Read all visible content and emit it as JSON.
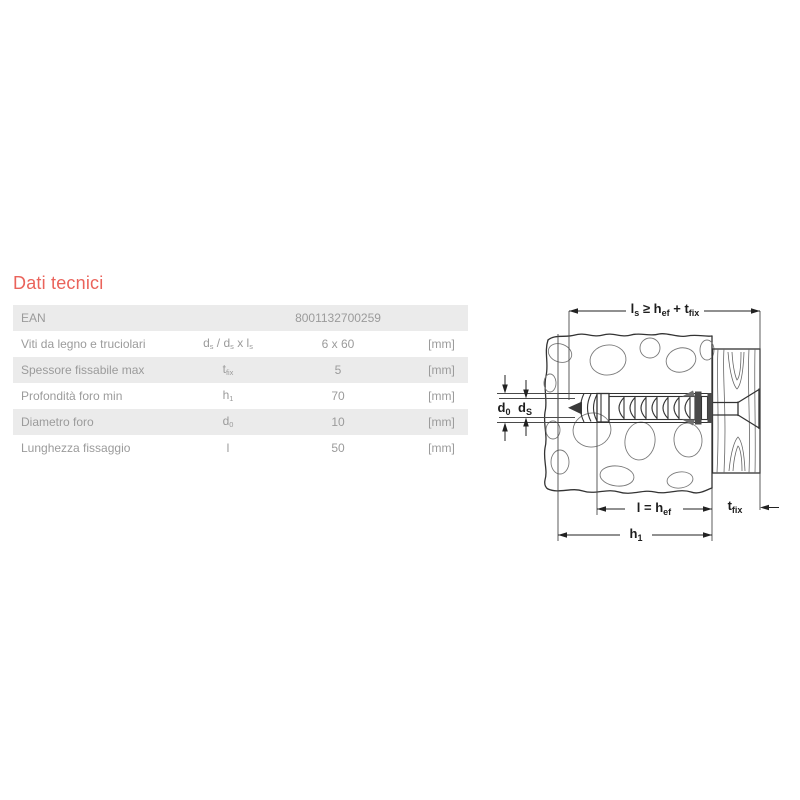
{
  "page": {
    "background": "#ffffff"
  },
  "section": {
    "title": "Dati tecnici"
  },
  "colors": {
    "accent": "#ea635b",
    "row_shade": "#ebebeb",
    "table_text": "#9b9b9b",
    "diagram_line": "#333333"
  },
  "table": {
    "rows": [
      {
        "label": "EAN",
        "symbol": "",
        "value": "8001132700259",
        "unit": ""
      },
      {
        "label": "Viti da legno e truciolari",
        "symbol": "d_s / d_s x l_s",
        "value": "6 x 60",
        "unit": "[mm]"
      },
      {
        "label": "Spessore fissabile max",
        "symbol": "t_fix",
        "value": "5",
        "unit": "[mm]"
      },
      {
        "label": "Profondità foro min",
        "symbol": "h_1",
        "value": "70",
        "unit": "[mm]"
      },
      {
        "label": "Diametro foro",
        "symbol": "d_0",
        "value": "10",
        "unit": "[mm]"
      },
      {
        "label": "Lunghezza fissaggio",
        "symbol": "l",
        "value": "50",
        "unit": "[mm]"
      }
    ]
  },
  "diagram": {
    "labels": {
      "screw_length": "l_s ≥ h_ef + t_fix",
      "hole_diameter": "d_0",
      "screw_diameter": "d_S",
      "anchor_length": "l = h_ef",
      "fixture_thickness": "t_fix",
      "hole_depth": "h_1"
    }
  }
}
